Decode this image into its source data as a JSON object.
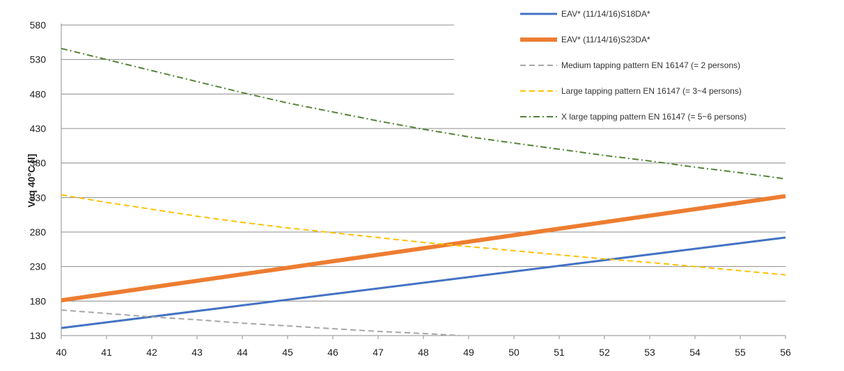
{
  "chart_data": {
    "type": "line",
    "title": "",
    "xlabel": "",
    "ylabel": "Veq 40°C [l]",
    "xlim": [
      40,
      56
    ],
    "ylim": [
      130,
      580
    ],
    "x_ticks": [
      40,
      41,
      42,
      43,
      44,
      45,
      46,
      47,
      48,
      49,
      50,
      51,
      52,
      53,
      54,
      55,
      56
    ],
    "y_ticks": [
      130,
      180,
      230,
      280,
      330,
      380,
      430,
      480,
      530,
      580
    ],
    "grid": "horizontal",
    "legend_position": "top-right",
    "series": [
      {
        "name": "EAV* (11/14/16)S18DA*",
        "color": "#4472C4",
        "dash": "solid",
        "width": 3,
        "x": [
          40,
          56
        ],
        "y": [
          141,
          272
        ]
      },
      {
        "name": "EAV* (11/14/16)S23DA*",
        "color": "#ED7D31",
        "dash": "solid",
        "width": 6,
        "x": [
          40,
          56
        ],
        "y": [
          181,
          332
        ]
      },
      {
        "name": "Medium tapping pattern EN 16147 (= 2 persons)",
        "color": "#A5A5A5",
        "dash": "dash",
        "width": 2,
        "x": [
          40,
          41,
          42,
          43,
          44,
          45,
          46,
          47,
          48,
          48.8
        ],
        "y": [
          167,
          162,
          157,
          153,
          148,
          144,
          140,
          136,
          133,
          130
        ]
      },
      {
        "name": "Large tapping pattern EN 16147 (= 3~4 persons)",
        "color": "#FFC000",
        "dash": "dash",
        "width": 2,
        "x": [
          40,
          41,
          42,
          43,
          44,
          45,
          46,
          47,
          48,
          49,
          50,
          51,
          52,
          53,
          54,
          55,
          56
        ],
        "y": [
          334,
          323,
          313,
          303,
          294,
          286,
          279,
          272,
          265,
          259,
          253,
          247,
          241,
          236,
          230,
          224,
          218
        ]
      },
      {
        "name": "X large tapping pattern EN 16147 (= 5~6 persons)",
        "color": "#548235",
        "dash": "dashdot",
        "width": 2,
        "x": [
          40,
          41,
          42,
          43,
          44,
          45,
          46,
          47,
          48,
          49,
          50,
          51,
          52,
          53,
          54,
          55,
          56
        ],
        "y": [
          546,
          530,
          514,
          498,
          482,
          467,
          454,
          441,
          429,
          418,
          409,
          400,
          391,
          383,
          374,
          366,
          357
        ]
      }
    ]
  }
}
